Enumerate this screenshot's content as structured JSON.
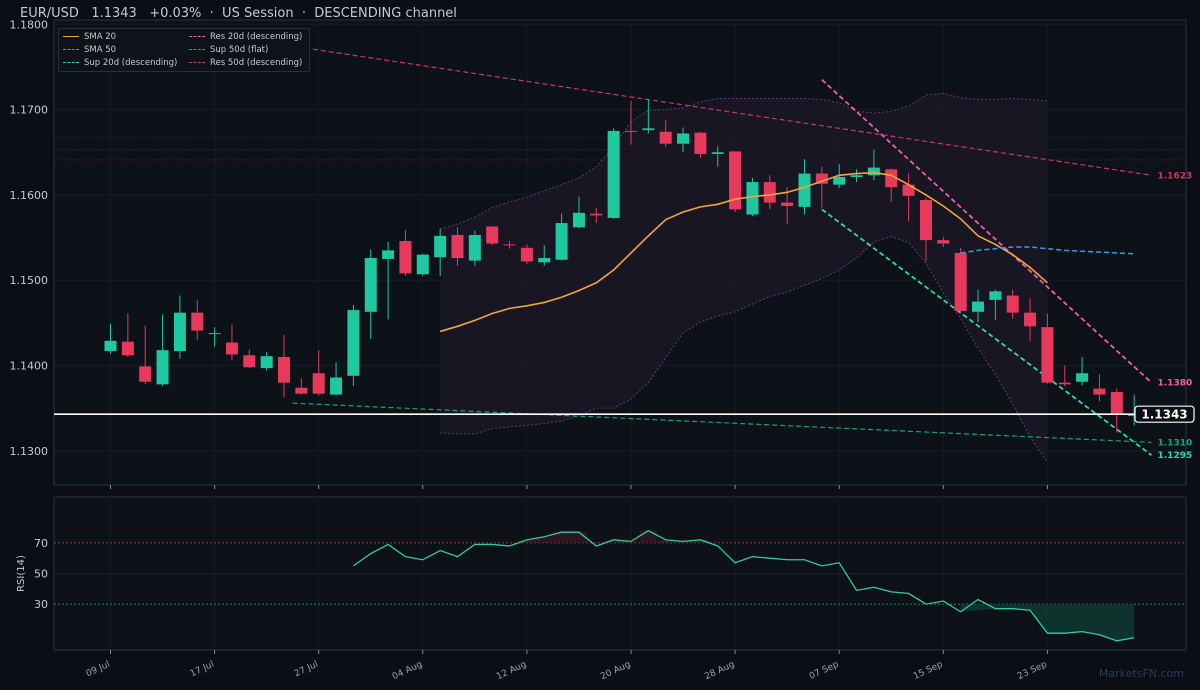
{
  "header": {
    "title": "EUR/USD   1.1343   +0.03%  ·  US Session  ·  DESCENDING channel"
  },
  "watermark": "MarketsFN.com",
  "colors": {
    "background": "#0b0e14",
    "up": "#1ec8a0",
    "down": "#e8395c",
    "sma20": "#f2a53c",
    "sma50": "#3a9de0",
    "res20": "#ef5fa7",
    "res50": "#c53a63",
    "sup20": "#2ed9b0",
    "sup50": "#1aa37a",
    "rsi": "#35c9a2",
    "band": "#6a3d8c",
    "price_line": "#ffffff"
  },
  "legend": [
    {
      "label": "SMA 20",
      "color": "#f2a53c",
      "style": "solid"
    },
    {
      "label": "SMA 50",
      "color": "#3a9de0",
      "style": "dashed"
    },
    {
      "label": "Sup 20d (descending)",
      "color": "#2ed9b0",
      "style": "dashed"
    },
    {
      "label": "Res 20d (descending)",
      "color": "#ef5fa7",
      "style": "dashed"
    },
    {
      "label": "Sup 50d (flat)",
      "color": "#1aa37a",
      "style": "dashed"
    },
    {
      "label": "Res 50d (descending)",
      "color": "#c53a63",
      "style": "dashed"
    }
  ],
  "chart_data": [
    {
      "type": "candlestick",
      "title": "EUR/USD",
      "ylim": [
        1.126,
        1.1805
      ],
      "y_ticks": [
        "1.1300",
        "1.1400",
        "1.1500",
        "1.1600",
        "1.1700",
        "1.1800"
      ],
      "x_ticks": [
        {
          "label": "09 Jul",
          "i": 0
        },
        {
          "label": "17 Jul",
          "i": 6
        },
        {
          "label": "27 Jul",
          "i": 12
        },
        {
          "label": "04 Aug",
          "i": 18
        },
        {
          "label": "12 Aug",
          "i": 24
        },
        {
          "label": "20 Aug",
          "i": 30
        },
        {
          "label": "28 Aug",
          "i": 36
        },
        {
          "label": "07 Sep",
          "i": 42
        },
        {
          "label": "15 Sep",
          "i": 48
        },
        {
          "label": "23 Sep",
          "i": 54
        }
      ],
      "candles": [
        {
          "o": 1.1417,
          "h": 1.1449,
          "l": 1.1414,
          "c": 1.1429
        },
        {
          "o": 1.1428,
          "h": 1.1461,
          "l": 1.141,
          "c": 1.1412
        },
        {
          "o": 1.1399,
          "h": 1.1447,
          "l": 1.1378,
          "c": 1.1381
        },
        {
          "o": 1.1378,
          "h": 1.146,
          "l": 1.1376,
          "c": 1.1418
        },
        {
          "o": 1.1417,
          "h": 1.1482,
          "l": 1.1408,
          "c": 1.1462
        },
        {
          "o": 1.1462,
          "h": 1.1477,
          "l": 1.143,
          "c": 1.1441
        },
        {
          "o": 1.1437,
          "h": 1.1445,
          "l": 1.1422,
          "c": 1.1438
        },
        {
          "o": 1.1427,
          "h": 1.1448,
          "l": 1.1406,
          "c": 1.1413
        },
        {
          "o": 1.1412,
          "h": 1.1419,
          "l": 1.1397,
          "c": 1.1398
        },
        {
          "o": 1.1397,
          "h": 1.1416,
          "l": 1.1394,
          "c": 1.1411
        },
        {
          "o": 1.141,
          "h": 1.1436,
          "l": 1.1363,
          "c": 1.138
        },
        {
          "o": 1.1374,
          "h": 1.1385,
          "l": 1.1366,
          "c": 1.1367
        },
        {
          "o": 1.1391,
          "h": 1.1418,
          "l": 1.1365,
          "c": 1.1367
        },
        {
          "o": 1.1366,
          "h": 1.1404,
          "l": 1.1365,
          "c": 1.1386
        },
        {
          "o": 1.1388,
          "h": 1.1471,
          "l": 1.1376,
          "c": 1.1465
        },
        {
          "o": 1.1463,
          "h": 1.1536,
          "l": 1.1431,
          "c": 1.1526
        },
        {
          "o": 1.1525,
          "h": 1.1545,
          "l": 1.1454,
          "c": 1.1535
        },
        {
          "o": 1.1546,
          "h": 1.1559,
          "l": 1.1505,
          "c": 1.1508
        },
        {
          "o": 1.1507,
          "h": 1.1531,
          "l": 1.1505,
          "c": 1.153
        },
        {
          "o": 1.1527,
          "h": 1.156,
          "l": 1.1505,
          "c": 1.1552
        },
        {
          "o": 1.1553,
          "h": 1.1562,
          "l": 1.1517,
          "c": 1.1526
        },
        {
          "o": 1.1523,
          "h": 1.1558,
          "l": 1.1517,
          "c": 1.1553
        },
        {
          "o": 1.1563,
          "h": 1.1563,
          "l": 1.1541,
          "c": 1.1543
        },
        {
          "o": 1.1542,
          "h": 1.1546,
          "l": 1.1537,
          "c": 1.1541
        },
        {
          "o": 1.1538,
          "h": 1.1542,
          "l": 1.1519,
          "c": 1.1522
        },
        {
          "o": 1.1521,
          "h": 1.1541,
          "l": 1.1517,
          "c": 1.1526
        },
        {
          "o": 1.1524,
          "h": 1.1578,
          "l": 1.1523,
          "c": 1.1567
        },
        {
          "o": 1.1562,
          "h": 1.1598,
          "l": 1.1561,
          "c": 1.1579
        },
        {
          "o": 1.1578,
          "h": 1.1585,
          "l": 1.1567,
          "c": 1.1576
        },
        {
          "o": 1.1573,
          "h": 1.1678,
          "l": 1.1572,
          "c": 1.1675
        },
        {
          "o": 1.1675,
          "h": 1.171,
          "l": 1.1659,
          "c": 1.1674
        },
        {
          "o": 1.1676,
          "h": 1.1712,
          "l": 1.1672,
          "c": 1.1678
        },
        {
          "o": 1.1674,
          "h": 1.1688,
          "l": 1.1656,
          "c": 1.166
        },
        {
          "o": 1.166,
          "h": 1.1679,
          "l": 1.165,
          "c": 1.1672
        },
        {
          "o": 1.1673,
          "h": 1.1674,
          "l": 1.1643,
          "c": 1.1648
        },
        {
          "o": 1.1648,
          "h": 1.1657,
          "l": 1.1633,
          "c": 1.165
        },
        {
          "o": 1.1651,
          "h": 1.1651,
          "l": 1.158,
          "c": 1.1583
        },
        {
          "o": 1.1577,
          "h": 1.162,
          "l": 1.1575,
          "c": 1.1615
        },
        {
          "o": 1.1615,
          "h": 1.1623,
          "l": 1.1583,
          "c": 1.1591
        },
        {
          "o": 1.1591,
          "h": 1.1609,
          "l": 1.1566,
          "c": 1.1587
        },
        {
          "o": 1.1586,
          "h": 1.1642,
          "l": 1.1577,
          "c": 1.1625
        },
        {
          "o": 1.1625,
          "h": 1.1633,
          "l": 1.1585,
          "c": 1.1613
        },
        {
          "o": 1.1612,
          "h": 1.1636,
          "l": 1.1608,
          "c": 1.1621
        },
        {
          "o": 1.1621,
          "h": 1.163,
          "l": 1.1615,
          "c": 1.1623
        },
        {
          "o": 1.1623,
          "h": 1.1653,
          "l": 1.1617,
          "c": 1.1632
        },
        {
          "o": 1.163,
          "h": 1.1631,
          "l": 1.1592,
          "c": 1.1609
        },
        {
          "o": 1.1612,
          "h": 1.1625,
          "l": 1.1569,
          "c": 1.1599
        },
        {
          "o": 1.1594,
          "h": 1.1596,
          "l": 1.1522,
          "c": 1.1547
        },
        {
          "o": 1.1547,
          "h": 1.1551,
          "l": 1.1539,
          "c": 1.1543
        },
        {
          "o": 1.1532,
          "h": 1.1538,
          "l": 1.1463,
          "c": 1.1464
        },
        {
          "o": 1.1463,
          "h": 1.1489,
          "l": 1.1451,
          "c": 1.1475
        },
        {
          "o": 1.1477,
          "h": 1.1489,
          "l": 1.1453,
          "c": 1.1487
        },
        {
          "o": 1.1482,
          "h": 1.1489,
          "l": 1.1455,
          "c": 1.1462
        },
        {
          "o": 1.1462,
          "h": 1.1479,
          "l": 1.1429,
          "c": 1.1446
        },
        {
          "o": 1.1445,
          "h": 1.1461,
          "l": 1.1379,
          "c": 1.138
        },
        {
          "o": 1.138,
          "h": 1.14,
          "l": 1.1376,
          "c": 1.1378
        },
        {
          "o": 1.1381,
          "h": 1.141,
          "l": 1.1377,
          "c": 1.1391
        },
        {
          "o": 1.1373,
          "h": 1.139,
          "l": 1.1358,
          "c": 1.1366
        },
        {
          "o": 1.1369,
          "h": 1.1373,
          "l": 1.1321,
          "c": 1.1342
        },
        {
          "o": 1.1341,
          "h": 1.1366,
          "l": 1.133,
          "c": 1.1343
        }
      ],
      "series": [
        {
          "name": "SMA 20",
          "start": 19,
          "values": [
            1.144,
            1.1446,
            1.1453,
            1.1461,
            1.1467,
            1.147,
            1.1474,
            1.148,
            1.1488,
            1.1497,
            1.1512,
            1.1532,
            1.1552,
            1.1571,
            1.158,
            1.1586,
            1.1589,
            1.1595,
            1.1598,
            1.16,
            1.1603,
            1.1609,
            1.1616,
            1.1623,
            1.1625,
            1.1626,
            1.1623,
            1.1612,
            1.16,
            1.1587,
            1.1572,
            1.1552,
            1.1542,
            1.153,
            1.1515,
            1.1497
          ]
        },
        {
          "name": "SMA 50",
          "start": 49,
          "values": [
            1.1532,
            1.1535,
            1.1537,
            1.1539,
            1.1539,
            1.1537,
            1.1535,
            1.1534,
            1.1533,
            1.1532,
            1.1531
          ]
        },
        {
          "name": "Upper band",
          "start": 19,
          "values": [
            1.156,
            1.1566,
            1.1574,
            1.1585,
            1.1592,
            1.1597,
            1.1605,
            1.1612,
            1.162,
            1.1633,
            1.1656,
            1.1686,
            1.1699,
            1.17,
            1.1702,
            1.1709,
            1.1713,
            1.1713,
            1.1713,
            1.1713,
            1.1713,
            1.1713,
            1.1712,
            1.1708,
            1.1698,
            1.1696,
            1.1698,
            1.1704,
            1.1717,
            1.1719,
            1.1714,
            1.1712,
            1.1712,
            1.1713,
            1.1712,
            1.171
          ]
        },
        {
          "name": "Lower band",
          "start": 19,
          "values": [
            1.1321,
            1.132,
            1.132,
            1.1326,
            1.1328,
            1.133,
            1.1332,
            1.1335,
            1.1341,
            1.135,
            1.135,
            1.1361,
            1.138,
            1.1409,
            1.1438,
            1.1451,
            1.1458,
            1.1463,
            1.1472,
            1.1481,
            1.1486,
            1.1494,
            1.1502,
            1.1512,
            1.1526,
            1.1545,
            1.1551,
            1.1544,
            1.152,
            1.1485,
            1.1455,
            1.142,
            1.139,
            1.1355,
            1.1316,
            1.1287
          ]
        }
      ],
      "trendlines": [
        {
          "name": "Res 20d (descending)",
          "x0": 41.0,
          "y0": 1.1735,
          "x1": 60,
          "y1": 1.138,
          "label": "1.1380"
        },
        {
          "name": "Sup 20d (descending)",
          "x0": 41.0,
          "y0": 1.1583,
          "x1": 60,
          "y1": 1.1295,
          "label": "1.1295"
        },
        {
          "name": "Sup 50d (flat)",
          "x0": 10.5,
          "y0": 1.1356,
          "x1": 60,
          "y1": 1.131,
          "label": "1.1310"
        },
        {
          "name": "Res 50d (descending)",
          "x0": 10.3,
          "y0": 1.1775,
          "x1": 60,
          "y1": 1.1623,
          "label": "1.1623"
        }
      ],
      "horizontal_levels": [
        1.1667,
        1.1653,
        1.1641
      ],
      "last_price": "1.1343"
    },
    {
      "type": "line",
      "ylabel": "RSI(14)",
      "ylim": [
        0,
        100
      ],
      "y_ticks": [
        30,
        50,
        70
      ],
      "levels": [
        30,
        70
      ],
      "start": 14,
      "values": [
        55,
        63,
        69,
        61,
        59,
        65,
        61,
        69,
        69,
        68,
        72,
        74,
        77,
        77,
        68,
        72,
        71,
        78,
        72,
        71,
        72,
        68,
        57,
        61,
        60,
        59,
        59,
        55,
        57,
        39,
        41,
        38,
        37,
        30,
        32,
        25,
        33,
        27,
        27,
        26,
        11,
        11,
        12,
        10,
        6,
        8
      ]
    }
  ]
}
